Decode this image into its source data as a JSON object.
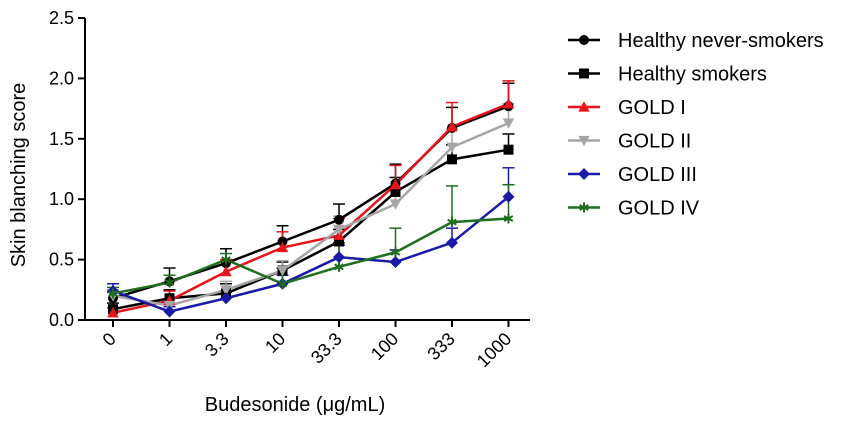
{
  "chart_data": {
    "type": "line",
    "xlabel": "Budesonide (μg/mL)",
    "ylabel": "Skin blanching score",
    "categories": [
      "0",
      "1",
      "3.3",
      "10",
      "33.3",
      "100",
      "333",
      "1000"
    ],
    "ylim": [
      0,
      2.5
    ],
    "yticks": [
      "0.0",
      "0.5",
      "1.0",
      "1.5",
      "2.0",
      "2.5"
    ],
    "grid": false,
    "legend_position": "right",
    "series": [
      {
        "name": "Healthy never-smokers",
        "color": "#000000",
        "marker": "circle",
        "values": [
          0.18,
          0.32,
          0.47,
          0.65,
          0.83,
          1.13,
          1.59,
          1.77
        ],
        "errors": [
          0.05,
          0.11,
          0.12,
          0.13,
          0.13,
          0.16,
          0.17,
          0.19
        ]
      },
      {
        "name": "Healthy smokers",
        "color": "#000000",
        "marker": "square",
        "values": [
          0.09,
          0.18,
          0.22,
          0.41,
          0.65,
          1.06,
          1.33,
          1.41
        ],
        "errors": [
          0.05,
          0.07,
          0.08,
          0.07,
          0.1,
          0.12,
          0.12,
          0.13
        ]
      },
      {
        "name": "GOLD I",
        "color": "#e8141b",
        "marker": "triangle-up",
        "values": [
          0.06,
          0.16,
          0.4,
          0.6,
          0.7,
          1.12,
          1.6,
          1.79
        ],
        "errors": [
          0.04,
          0.08,
          0.1,
          0.13,
          0.14,
          0.16,
          0.2,
          0.19
        ]
      },
      {
        "name": "GOLD II",
        "color": "#a6a6a6",
        "marker": "triangle-down",
        "values": [
          0.2,
          0.12,
          0.25,
          0.41,
          0.75,
          0.96,
          1.43,
          1.63
        ],
        "errors": [
          0.05,
          0.05,
          0.07,
          0.08,
          0.11,
          0.14,
          0.15,
          0.16
        ]
      },
      {
        "name": "GOLD III",
        "color": "#1a1aa8",
        "marker": "diamond",
        "values": [
          0.24,
          0.07,
          0.18,
          0.3,
          0.52,
          0.48,
          0.64,
          1.02
        ],
        "errors": [
          0.06,
          0.04,
          0.05,
          0.07,
          0.1,
          0.1,
          0.12,
          0.24
        ]
      },
      {
        "name": "GOLD IV",
        "color": "#1e6e1e",
        "marker": "asterisk",
        "values": [
          0.22,
          0.31,
          0.5,
          0.3,
          0.44,
          0.56,
          0.81,
          0.84
        ],
        "errors": [
          0.05,
          0.06,
          0.05,
          0.13,
          0.2,
          0.2,
          0.3,
          0.28
        ]
      }
    ]
  }
}
